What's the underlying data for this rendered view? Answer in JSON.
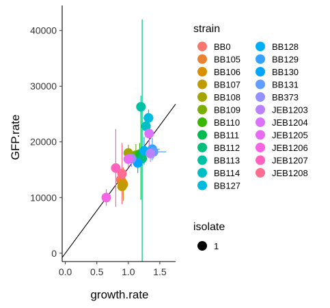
{
  "chart_data": {
    "type": "scatter",
    "xlabel": "growth.rate",
    "ylabel": "GFP.rate",
    "xlim": [
      -0.05,
      1.75
    ],
    "ylim": [
      -1500,
      44500
    ],
    "x_ticks": [
      0.0,
      0.5,
      1.0,
      1.5
    ],
    "x_tick_labels": [
      "0.0",
      "0.5",
      "1.0",
      "1.5"
    ],
    "y_ticks": [
      0,
      10000,
      20000,
      30000,
      40000
    ],
    "y_tick_labels": [
      "0",
      "10000",
      "20000",
      "30000",
      "40000"
    ],
    "grid": false,
    "reference_line": {
      "slope": 15300,
      "intercept": 0,
      "color": "#000000"
    },
    "legend": {
      "strain_title": "strain",
      "isolate_title": "isolate",
      "isolate_entries": [
        "1"
      ],
      "placement": "right"
    },
    "points": [
      {
        "strain": "BB0",
        "color": "#F8766D",
        "x": 0.88,
        "y": 13200,
        "xerr": 0.03,
        "yerr": 2000
      },
      {
        "strain": "BB105",
        "color": "#EA8331",
        "x": 0.9,
        "y": 12800,
        "xerr": 0.03,
        "yerr": 2500
      },
      {
        "strain": "BB106",
        "color": "#D89000",
        "x": 0.92,
        "y": 12400,
        "xerr": 0.04,
        "yerr": 3000
      },
      {
        "strain": "BB107",
        "color": "#C09B00",
        "x": 0.9,
        "y": 12000,
        "xerr": 0.03,
        "yerr": 1800
      },
      {
        "strain": "BB108",
        "color": "#A3A500",
        "x": 1.0,
        "y": 18000,
        "xerr": 0.04,
        "yerr": 1500
      },
      {
        "strain": "BB109",
        "color": "#7CAE00",
        "x": 1.12,
        "y": 17600,
        "xerr": 0.03,
        "yerr": 2000
      },
      {
        "strain": "BB110",
        "color": "#39B600",
        "x": 1.18,
        "y": 17800,
        "xerr": 0.03,
        "yerr": 2000
      },
      {
        "strain": "BB111",
        "color": "#00BB4E",
        "x": 1.2,
        "y": 17600,
        "xerr": 0.04,
        "yerr": 8000
      },
      {
        "strain": "BB112",
        "color": "#00BF7D",
        "x": 1.22,
        "y": 17000,
        "xerr": 0.03,
        "yerr": 25000
      },
      {
        "strain": "BB113",
        "color": "#00C1A3",
        "x": 1.2,
        "y": 26300,
        "xerr": 0.04,
        "yerr": 2000
      },
      {
        "strain": "BB114",
        "color": "#00BFC4",
        "x": 1.28,
        "y": 22800,
        "xerr": 0.03,
        "yerr": 2000
      },
      {
        "strain": "BB127",
        "color": "#00BAE0",
        "x": 1.32,
        "y": 24300,
        "xerr": 0.08,
        "yerr": 1500
      },
      {
        "strain": "BB128",
        "color": "#00B0F6",
        "x": 1.25,
        "y": 18400,
        "xerr": 0.05,
        "yerr": 2500
      },
      {
        "strain": "BB129",
        "color": "#35A2FF",
        "x": 1.38,
        "y": 18700,
        "xerr": 0.12,
        "yerr": 2000
      },
      {
        "strain": "BB130",
        "color": "#00A5FF",
        "x": 1.15,
        "y": 16200,
        "xerr": 0.03,
        "yerr": 1800
      },
      {
        "strain": "BB131",
        "color": "#619CFF",
        "x": 1.4,
        "y": 18200,
        "xerr": 0.2,
        "yerr": 1200
      },
      {
        "strain": "BB373",
        "color": "#9590FF",
        "x": 1.05,
        "y": 17000,
        "xerr": 0.03,
        "yerr": 1500
      },
      {
        "strain": "JEB1203",
        "color": "#B983FF",
        "x": 1.35,
        "y": 17900,
        "xerr": 0.05,
        "yerr": 1500
      },
      {
        "strain": "JEB1204",
        "color": "#DB72FB",
        "x": 1.33,
        "y": 21500,
        "xerr": 0.05,
        "yerr": 2500
      },
      {
        "strain": "JEB1205",
        "color": "#E76BF3",
        "x": 1.0,
        "y": 16900,
        "xerr": 0.04,
        "yerr": 1500
      },
      {
        "strain": "JEB1206",
        "color": "#F564E3",
        "x": 0.65,
        "y": 10000,
        "xerr": 0.03,
        "yerr": 1500
      },
      {
        "strain": "JEB1207",
        "color": "#FF62BC",
        "x": 0.8,
        "y": 15300,
        "xerr": 0.02,
        "yerr": 7000
      },
      {
        "strain": "JEB1208",
        "color": "#FF6C91",
        "x": 0.9,
        "y": 14300,
        "xerr": 0.03,
        "yerr": 5500
      }
    ]
  }
}
